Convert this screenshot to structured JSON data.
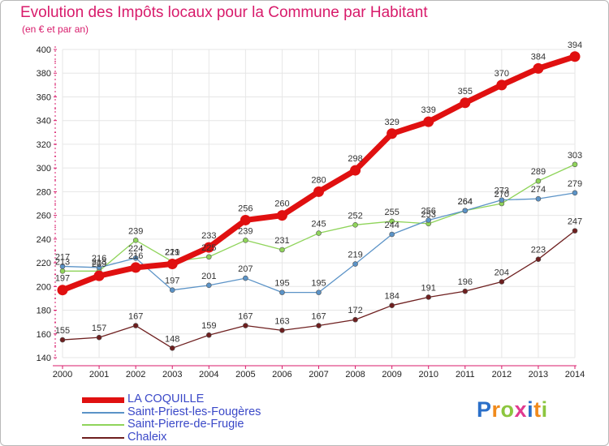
{
  "title": "Evolution des Impôts locaux pour la Commune par Habitant",
  "subtitle": "(en € et par an)",
  "logo": {
    "text": "Proxiti",
    "letter_colors": [
      "#2a6fc9",
      "#f08a1c",
      "#8cc63f",
      "#e03a8f",
      "#2a6fc9",
      "#f08a1c",
      "#8cc63f"
    ]
  },
  "chart_data": {
    "type": "line",
    "x": [
      "2000",
      "2001",
      "2002",
      "2003",
      "2004",
      "2005",
      "2006",
      "2007",
      "2008",
      "2009",
      "2010",
      "2011",
      "2012",
      "2013",
      "2014"
    ],
    "ylim": [
      140,
      400
    ],
    "yticks": [
      "140",
      "160",
      "180",
      "200",
      "220",
      "240",
      "260",
      "280",
      "300",
      "320",
      "340",
      "360",
      "380",
      "400"
    ],
    "grid": true,
    "legend_position": "bottom-left",
    "series": [
      {
        "name": "LA COQUILLE",
        "color": "#e01010",
        "values": [
          197,
          209,
          216,
          219,
          233,
          256,
          260,
          280,
          298,
          329,
          339,
          355,
          370,
          384,
          394
        ],
        "labels": [
          "197",
          "209",
          "216",
          "219",
          "233",
          "256",
          "260",
          "280",
          "298",
          "329",
          "339",
          "355",
          "370",
          "384",
          "394"
        ]
      },
      {
        "name": "Saint-Priest-les-Fougères",
        "color": "#5b93c7",
        "values": [
          217,
          216,
          224,
          197,
          201,
          207,
          195,
          195,
          219,
          244,
          256,
          264,
          273,
          274,
          279
        ],
        "labels": [
          "217",
          "216",
          "224",
          "197",
          "201",
          "207",
          "195",
          "195",
          "219",
          "244",
          "256",
          "264",
          "273",
          "274",
          "279"
        ]
      },
      {
        "name": "Saint-Pierre-de-Frugie",
        "color": "#8fd45a",
        "values": [
          213,
          213,
          239,
          221,
          225,
          239,
          231,
          245,
          252,
          255,
          253,
          264,
          270,
          289,
          303
        ],
        "labels": [
          "213",
          "213",
          "239",
          "221",
          "225",
          "239",
          "231",
          "245",
          "252",
          "255",
          "253",
          "264",
          "270",
          "289",
          "303"
        ]
      },
      {
        "name": "Chaleix",
        "color": "#6e1f1f",
        "values": [
          155,
          157,
          167,
          148,
          159,
          167,
          163,
          167,
          172,
          184,
          191,
          196,
          204,
          223,
          247
        ],
        "labels": [
          "155",
          "157",
          "167",
          "148",
          "159",
          "167",
          "163",
          "167",
          "172",
          "184",
          "191",
          "196",
          "204",
          "223",
          "247"
        ]
      }
    ]
  }
}
